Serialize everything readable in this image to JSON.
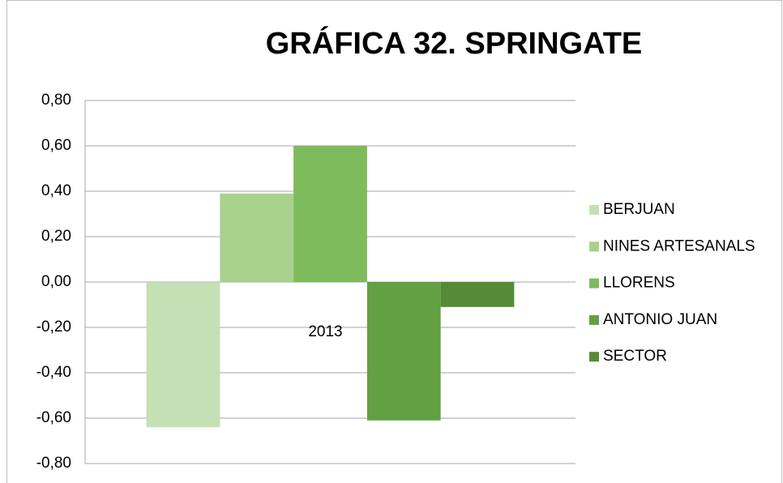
{
  "chart_data": {
    "type": "bar",
    "title": "GRÁFICA 32. SPRINGATE",
    "categories": [
      "2013"
    ],
    "series": [
      {
        "name": "BERJUAN",
        "color": "#c5e0b4",
        "values": [
          -0.64
        ]
      },
      {
        "name": "NINES ARTESANALS",
        "color": "#a9d18e",
        "values": [
          0.39
        ]
      },
      {
        "name": "LLORENS",
        "color": "#7dbb5c",
        "values": [
          0.6
        ]
      },
      {
        "name": "ANTONIO JUAN",
        "color": "#62a043",
        "values": [
          -0.61
        ]
      },
      {
        "name": "SECTOR",
        "color": "#558b38",
        "values": [
          -0.11
        ]
      }
    ],
    "ylim": [
      -0.8,
      0.8
    ],
    "yticks": [
      {
        "value": -0.8,
        "label": "-0,80"
      },
      {
        "value": -0.6,
        "label": "-0,60"
      },
      {
        "value": -0.4,
        "label": "-0,40"
      },
      {
        "value": -0.2,
        "label": "-0,20"
      },
      {
        "value": 0,
        "label": "0,00"
      },
      {
        "value": 0.2,
        "label": "0,20"
      },
      {
        "value": 0.4,
        "label": "0,40"
      },
      {
        "value": 0.6,
        "label": "0,60"
      },
      {
        "value": 0.8,
        "label": "0,80"
      }
    ],
    "grid": true,
    "legend": "right"
  }
}
